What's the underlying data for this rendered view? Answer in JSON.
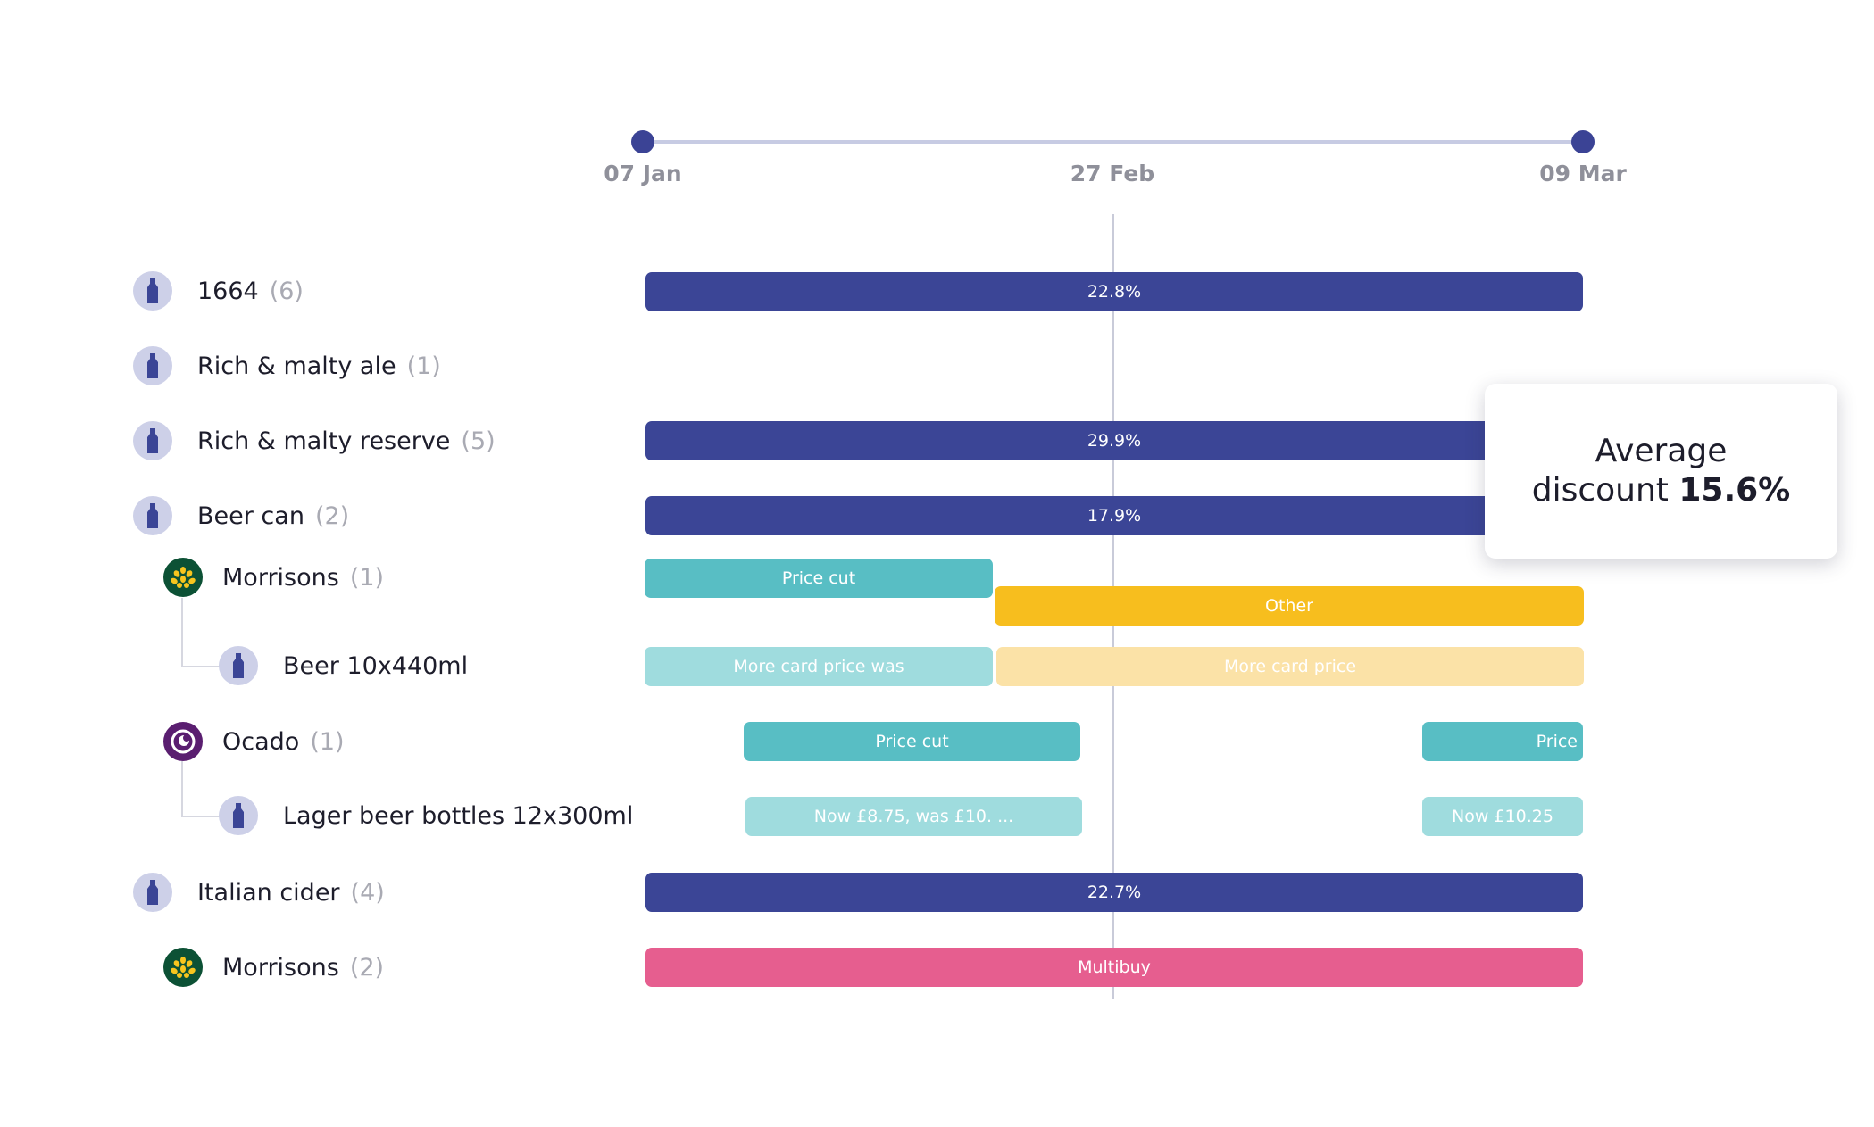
{
  "timeline": {
    "start_label": "07 Jan",
    "mid_label": "27 Feb",
    "end_label": "09 Mar"
  },
  "rows": [
    {
      "name": "1664",
      "count": "(6)",
      "type": "product"
    },
    {
      "name": "Rich & malty ale",
      "count": "(1)",
      "type": "product"
    },
    {
      "name": "Rich & malty reserve",
      "count": "(5)",
      "type": "product"
    },
    {
      "name": "Beer can",
      "count": "(2)",
      "type": "product"
    },
    {
      "name": "Morrisons",
      "count": "(1)",
      "type": "retailer"
    },
    {
      "name": "Beer 10x440ml",
      "count": "",
      "type": "sub-product"
    },
    {
      "name": "Ocado",
      "count": "(1)",
      "type": "retailer"
    },
    {
      "name": "Lager beer bottles 12x300ml",
      "count": "",
      "type": "sub-product"
    },
    {
      "name": "Italian cider",
      "count": "(4)",
      "type": "product"
    },
    {
      "name": "Morrisons",
      "count": "(2)",
      "type": "retailer"
    }
  ],
  "bars": {
    "b1664": "22.8%",
    "reserve": "29.9%",
    "beer_can": "17.9%",
    "morrisons_price_cut": "Price cut",
    "morrisons_other": "Other",
    "beer_more_card_was": "More card price was",
    "beer_more_card": "More card price",
    "ocado_price_cut": "Price cut",
    "ocado_price": "Price",
    "lager_now_was": "Now £8.75, was £10. ...",
    "lager_now": "Now £10.25",
    "cider": "22.7%",
    "cider_multibuy": "Multibuy"
  },
  "tooltip": {
    "line1": "Average",
    "line2_prefix": "discount",
    "value": "15.6%"
  },
  "colors": {
    "navy": "#3b4596",
    "teal": "#58bec4",
    "teal_light": "#9fdcde",
    "yellow": "#f7be1e",
    "yellow_light": "#fbe2a7",
    "pink": "#e65e8f"
  }
}
